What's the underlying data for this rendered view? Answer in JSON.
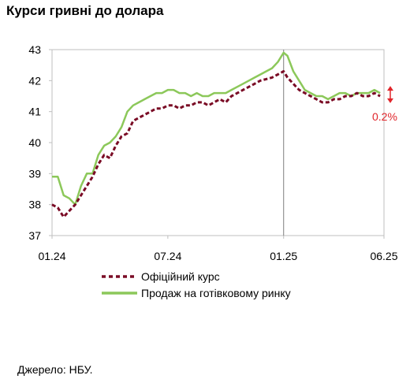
{
  "chart_data": {
    "type": "line",
    "title": "Курси гривні до долара",
    "xlabel": "",
    "ylabel": "",
    "ylim": [
      37,
      43
    ],
    "yticks": [
      37,
      38,
      39,
      40,
      41,
      42,
      43
    ],
    "xticks": [
      {
        "label": "01.24",
        "t": 0
      },
      {
        "label": "07.24",
        "t": 6
      },
      {
        "label": "01.25",
        "t": 12
      },
      {
        "label": "06.25",
        "t": 17.2
      }
    ],
    "xlim": [
      0,
      17.2
    ],
    "reference_line_t": 12,
    "grid": false,
    "legend_position": "bottom",
    "series": [
      {
        "name": "Офіційний курс",
        "color": "#7a0b25",
        "style": "dashed",
        "x": [
          0,
          0.3,
          0.6,
          0.9,
          1.2,
          1.5,
          1.8,
          2.1,
          2.4,
          2.7,
          3.0,
          3.3,
          3.6,
          3.9,
          4.2,
          4.5,
          4.8,
          5.1,
          5.4,
          5.7,
          6.0,
          6.3,
          6.6,
          6.9,
          7.2,
          7.5,
          7.8,
          8.1,
          8.4,
          8.7,
          9.0,
          9.3,
          9.6,
          9.9,
          10.2,
          10.5,
          10.8,
          11.1,
          11.4,
          11.7,
          12.0,
          12.2,
          12.5,
          12.8,
          13.1,
          13.4,
          13.7,
          14.0,
          14.3,
          14.6,
          14.9,
          15.2,
          15.5,
          15.8,
          16.1,
          16.4,
          16.7,
          17.0
        ],
        "y": [
          38.0,
          37.9,
          37.6,
          37.8,
          38.0,
          38.3,
          38.6,
          38.9,
          39.3,
          39.6,
          39.5,
          39.9,
          40.2,
          40.3,
          40.7,
          40.8,
          40.9,
          41.0,
          41.1,
          41.1,
          41.2,
          41.2,
          41.1,
          41.2,
          41.2,
          41.3,
          41.3,
          41.2,
          41.3,
          41.4,
          41.3,
          41.5,
          41.6,
          41.7,
          41.8,
          41.9,
          42.0,
          42.05,
          42.1,
          42.2,
          42.3,
          42.1,
          41.9,
          41.7,
          41.6,
          41.5,
          41.4,
          41.3,
          41.3,
          41.4,
          41.4,
          41.5,
          41.5,
          41.6,
          41.5,
          41.5,
          41.6,
          41.5
        ]
      },
      {
        "name": "Продаж на готівковому ринку",
        "color": "#8cc85a",
        "style": "solid",
        "x": [
          0,
          0.3,
          0.6,
          0.9,
          1.2,
          1.5,
          1.8,
          2.1,
          2.4,
          2.7,
          3.0,
          3.3,
          3.6,
          3.9,
          4.2,
          4.5,
          4.8,
          5.1,
          5.4,
          5.7,
          6.0,
          6.3,
          6.6,
          6.9,
          7.2,
          7.5,
          7.8,
          8.1,
          8.4,
          8.7,
          9.0,
          9.3,
          9.6,
          9.9,
          10.2,
          10.5,
          10.8,
          11.1,
          11.4,
          11.7,
          12.0,
          12.2,
          12.5,
          12.8,
          13.1,
          13.4,
          13.7,
          14.0,
          14.3,
          14.6,
          14.9,
          15.2,
          15.5,
          15.8,
          16.1,
          16.4,
          16.7,
          17.0
        ],
        "y": [
          38.9,
          38.9,
          38.3,
          38.2,
          38.0,
          38.6,
          39.0,
          39.0,
          39.6,
          39.9,
          40.0,
          40.2,
          40.5,
          41.0,
          41.2,
          41.3,
          41.4,
          41.5,
          41.6,
          41.6,
          41.7,
          41.7,
          41.6,
          41.6,
          41.5,
          41.6,
          41.5,
          41.5,
          41.6,
          41.6,
          41.6,
          41.7,
          41.8,
          41.9,
          42.0,
          42.1,
          42.2,
          42.3,
          42.4,
          42.6,
          42.9,
          42.8,
          42.3,
          42.0,
          41.7,
          41.6,
          41.5,
          41.5,
          41.4,
          41.5,
          41.6,
          41.6,
          41.5,
          41.6,
          41.6,
          41.6,
          41.7,
          41.6
        ]
      }
    ],
    "annotation": {
      "text": "0.2%",
      "color": "#e0252b",
      "t": 17.2,
      "y_top": 41.75,
      "y_bottom": 41.35
    }
  },
  "source": "Джерело: НБУ."
}
